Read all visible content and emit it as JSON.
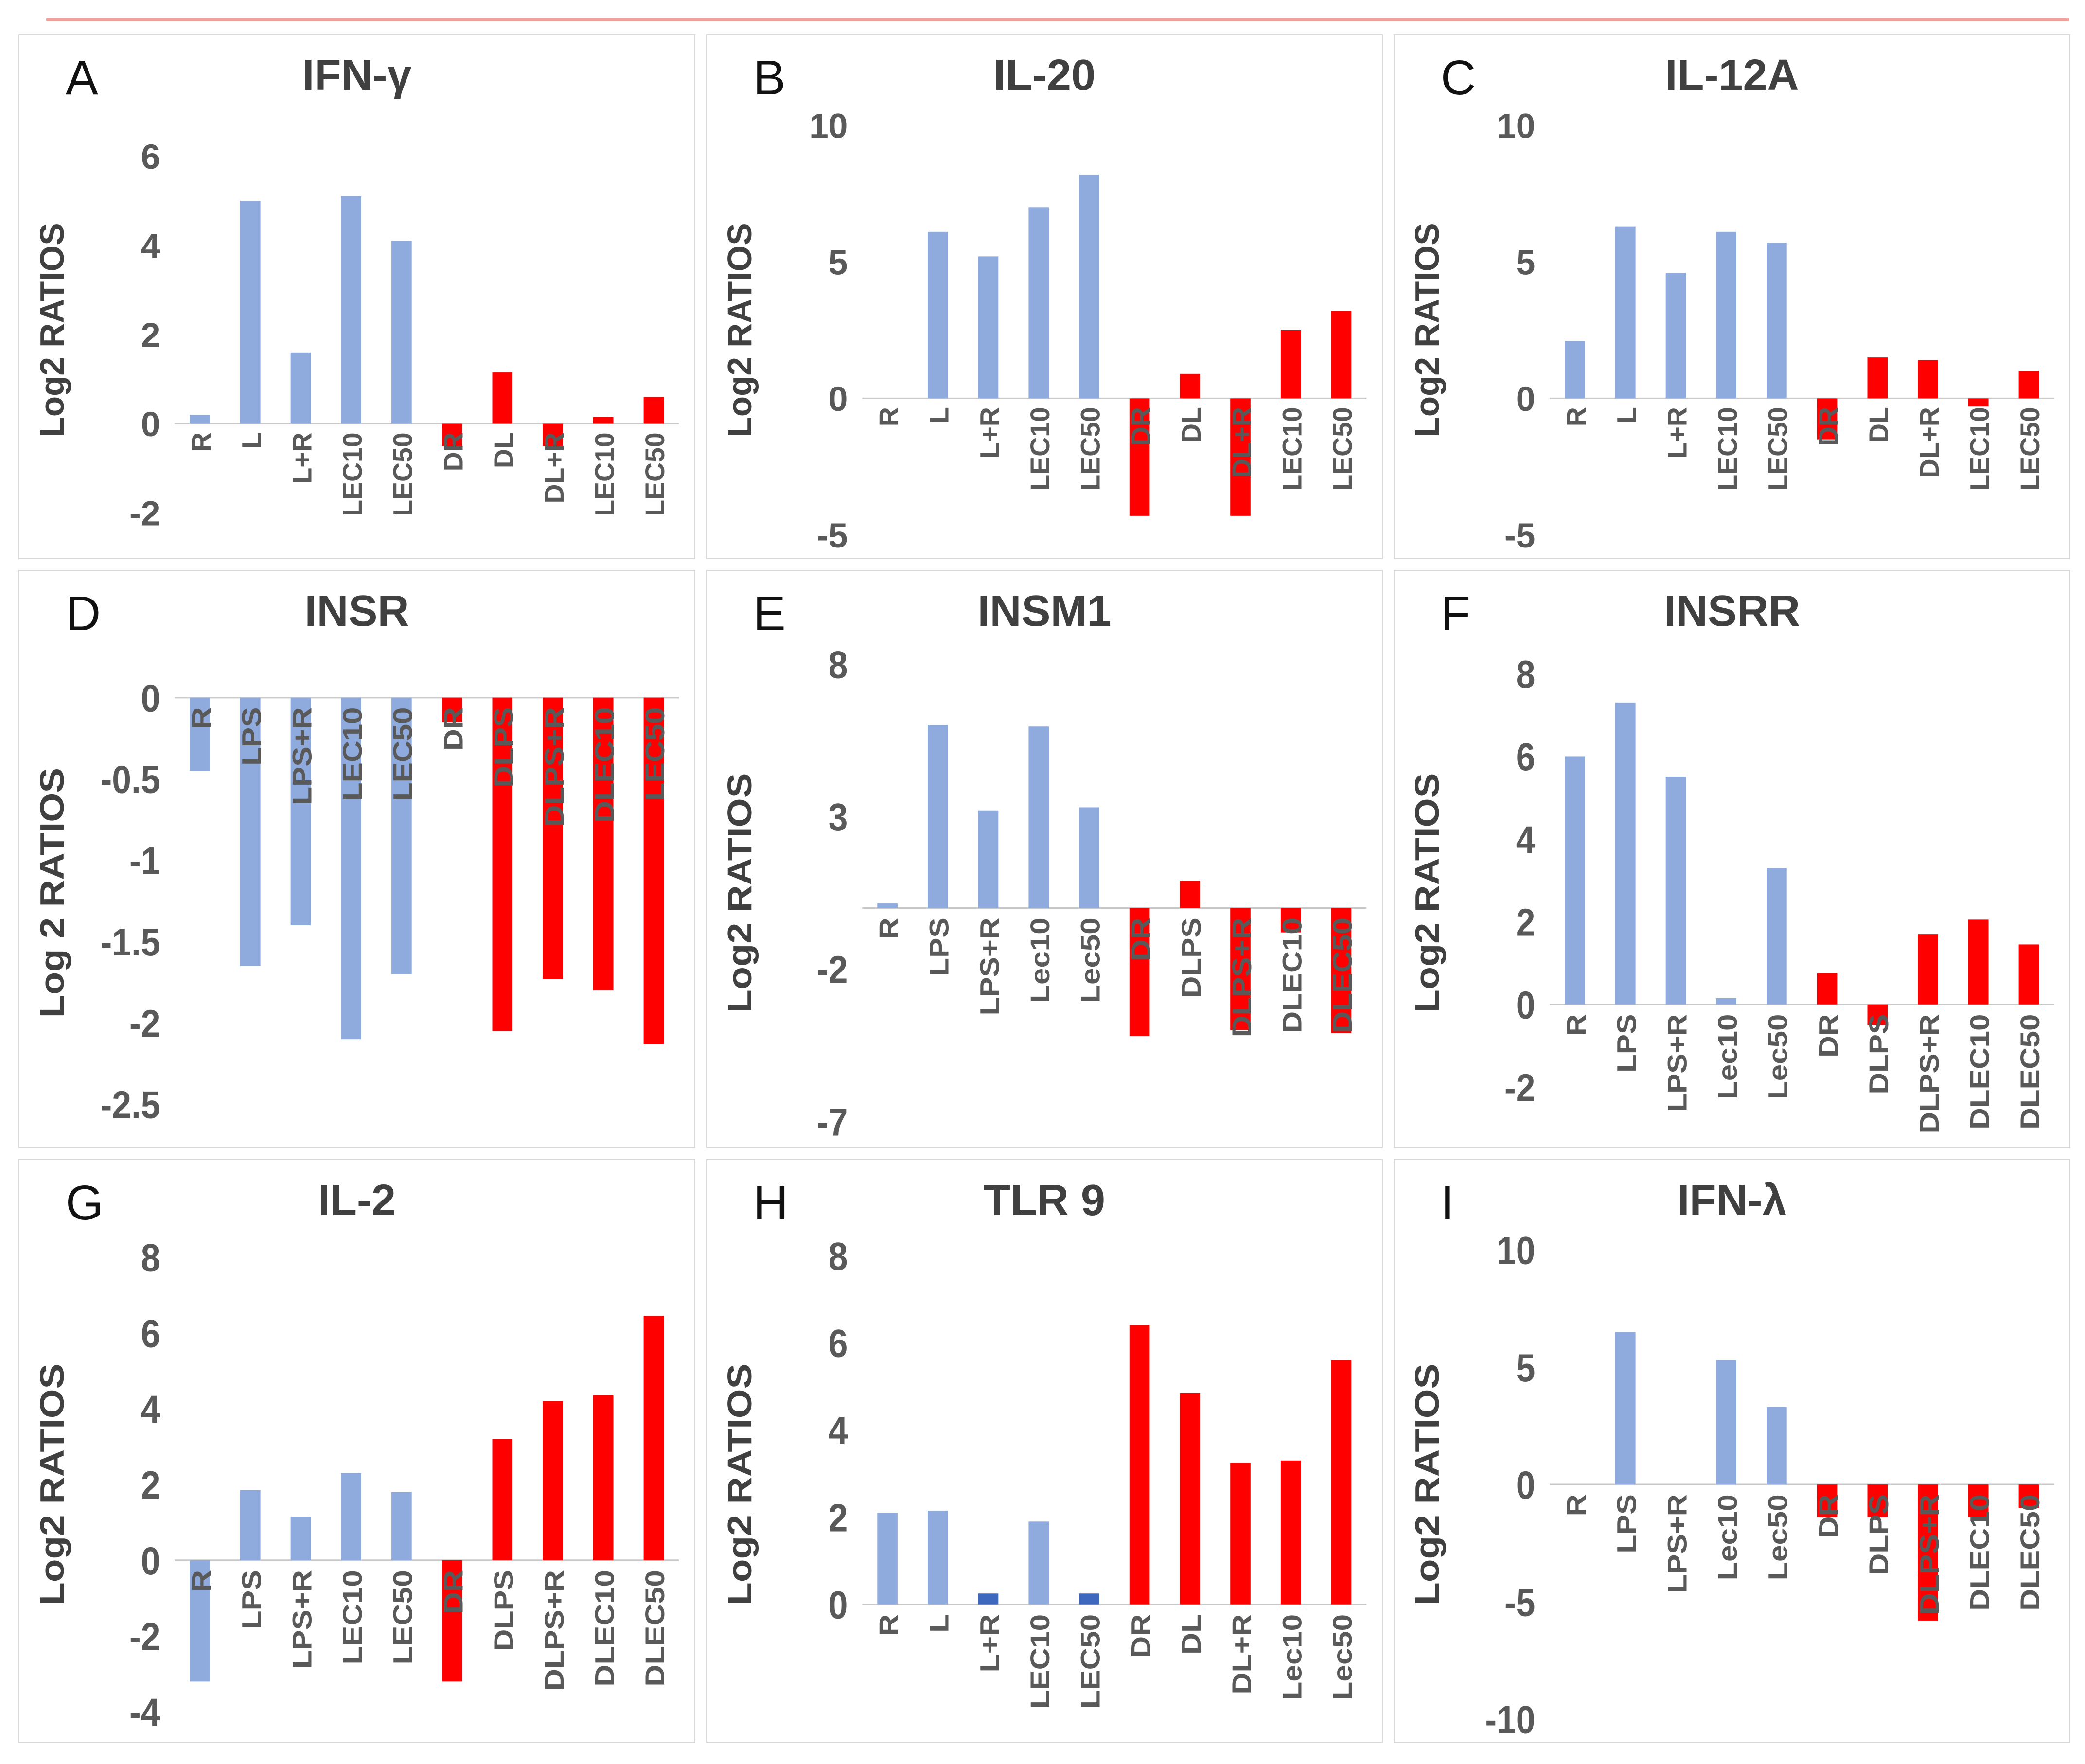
{
  "page": {
    "background": "#ffffff",
    "top_line_color": "#f2a29b"
  },
  "colors": {
    "lightblue": "#8FAADC",
    "darkblue": "#3E68BE",
    "red": "#FF0000",
    "axis": "#c9c9c9",
    "tick_text": "#595959",
    "title_text": "#404040",
    "border": "#d9d9d9"
  },
  "chart_data": [
    {
      "letter": "A",
      "type": "bar",
      "title": "IFN-γ",
      "ylabel": "Log2 RATIOS",
      "categories": [
        "R",
        "L",
        "L+R",
        "LEC10",
        "LEC50",
        "DR",
        "DL",
        "DL+R",
        "LEC10",
        "LEC50"
      ],
      "values": [
        0.2,
        5.0,
        1.6,
        5.1,
        4.1,
        -0.5,
        1.15,
        -0.5,
        0.15,
        0.6
      ],
      "bar_colors": [
        "lightblue",
        "lightblue",
        "lightblue",
        "lightblue",
        "lightblue",
        "red",
        "red",
        "red",
        "red",
        "red"
      ],
      "yticks": [
        6,
        4,
        2,
        0,
        -2
      ],
      "ylim": [
        -2.8,
        7.0
      ],
      "grid": "zero-line-only",
      "legend": "none"
    },
    {
      "letter": "B",
      "type": "bar",
      "title": "IL-20",
      "ylabel": "Log2 RATIOS",
      "categories": [
        "R",
        "L",
        "L+R",
        "LEC10",
        "LEC50",
        "DR",
        "DL",
        "DL+R",
        "LEC10",
        "LEC50"
      ],
      "values": [
        0,
        6.1,
        5.2,
        7.0,
        8.2,
        -4.3,
        0.9,
        -4.3,
        2.5,
        3.2
      ],
      "bar_colors": [
        "lightblue",
        "lightblue",
        "lightblue",
        "lightblue",
        "lightblue",
        "red",
        "red",
        "red",
        "red",
        "red"
      ],
      "yticks": [
        10,
        5,
        0,
        -5
      ],
      "ylim": [
        -5.5,
        10.5
      ],
      "grid": "zero-line-only",
      "legend": "none"
    },
    {
      "letter": "C",
      "type": "bar",
      "title": "IL-12A",
      "ylabel": "Log2 RATIOS",
      "categories": [
        "R",
        "L",
        "L+R",
        "LEC10",
        "LEC50",
        "DR",
        "DL",
        "DL+R",
        "LEC10",
        "LEC50"
      ],
      "values": [
        2.1,
        6.3,
        4.6,
        6.1,
        5.7,
        -1.5,
        1.5,
        1.4,
        -0.3,
        1.0
      ],
      "bar_colors": [
        "lightblue",
        "lightblue",
        "lightblue",
        "lightblue",
        "lightblue",
        "red",
        "red",
        "red",
        "red",
        "red"
      ],
      "yticks": [
        10,
        5,
        0,
        -5
      ],
      "ylim": [
        -5.5,
        10.5
      ],
      "grid": "zero-line-only",
      "legend": "none"
    },
    {
      "letter": "D",
      "type": "bar",
      "title": "INSR",
      "ylabel": "Log 2 RATIOS",
      "categories": [
        "R",
        "LPS",
        "LPS+R",
        "LEC10",
        "LEC50",
        "DR",
        "DLPS",
        "DLPS+R",
        "DLEC10",
        "LEC50"
      ],
      "values": [
        -0.45,
        -1.65,
        -1.4,
        -2.1,
        -1.7,
        -0.15,
        -2.05,
        -1.73,
        -1.8,
        -2.13
      ],
      "bar_colors": [
        "lightblue",
        "lightblue",
        "lightblue",
        "lightblue",
        "lightblue",
        "red",
        "red",
        "red",
        "red",
        "red"
      ],
      "yticks": [
        0,
        -0.5,
        -1,
        -1.5,
        -2,
        -2.5
      ],
      "ylim": [
        -2.7,
        0.3
      ],
      "grid": "zero-line-only",
      "legend": "none"
    },
    {
      "letter": "E",
      "type": "bar",
      "title": "INSM1",
      "ylabel": "Log2 RATIOS",
      "categories": [
        "R",
        "LPS",
        "LPS+R",
        "Lec10",
        "Lec50",
        "DR",
        "DLPS",
        "DLPS+R",
        "DLEC10",
        "DLEC50"
      ],
      "values": [
        0.15,
        6.0,
        3.2,
        5.95,
        3.3,
        -4.2,
        0.9,
        -4.0,
        -0.8,
        -4.1
      ],
      "bar_colors": [
        "lightblue",
        "lightblue",
        "lightblue",
        "lightblue",
        "lightblue",
        "red",
        "red",
        "red",
        "red",
        "red"
      ],
      "yticks": [
        8,
        3,
        -2,
        -7
      ],
      "ylim": [
        -7.5,
        8.5
      ],
      "grid": "zero-line-only",
      "legend": "none"
    },
    {
      "letter": "F",
      "type": "bar",
      "title": "INSRR",
      "ylabel": "Log2 RATIOS",
      "categories": [
        "R",
        "LPS",
        "LPS+R",
        "Lec10",
        "Lec50",
        "DR",
        "DLPS",
        "DLPS+R",
        "DLEC10",
        "DLEC50"
      ],
      "values": [
        6.0,
        7.3,
        5.5,
        0.15,
        3.3,
        0.75,
        -0.5,
        1.7,
        2.05,
        1.45
      ],
      "bar_colors": [
        "lightblue",
        "lightblue",
        "lightblue",
        "lightblue",
        "lightblue",
        "red",
        "red",
        "red",
        "red",
        "red"
      ],
      "yticks": [
        8,
        6,
        4,
        2,
        0,
        -2
      ],
      "ylim": [
        -3.2,
        8.6
      ],
      "grid": "zero-line-only",
      "legend": "none"
    },
    {
      "letter": "G",
      "type": "bar",
      "title": "IL-2",
      "ylabel": "Log2 RATIOS",
      "categories": [
        "R",
        "LPS",
        "LPS+R",
        "LEC10",
        "LEC50",
        "DR",
        "DLPS",
        "DLPS+R",
        "DLEC10",
        "DLEC50"
      ],
      "values": [
        -3.2,
        1.85,
        1.15,
        2.3,
        1.8,
        -3.2,
        3.2,
        4.2,
        4.35,
        6.45
      ],
      "bar_colors": [
        "lightblue",
        "lightblue",
        "lightblue",
        "lightblue",
        "lightblue",
        "red",
        "red",
        "red",
        "red",
        "red"
      ],
      "yticks": [
        8,
        6,
        4,
        2,
        0,
        -2,
        -4
      ],
      "ylim": [
        -4.5,
        8.5
      ],
      "grid": "zero-line-only",
      "legend": "none"
    },
    {
      "letter": "H",
      "type": "bar",
      "title": "TLR 9",
      "ylabel": "Log2 RATIOS",
      "categories": [
        "R",
        "L",
        "L+R",
        "LEC10",
        "LEC50",
        "DR",
        "DL",
        "DL+R",
        "Lec10",
        "Lec50"
      ],
      "values": [
        2.1,
        2.15,
        0.25,
        1.9,
        0.25,
        6.4,
        4.85,
        3.25,
        3.3,
        5.6
      ],
      "bar_colors": [
        "lightblue",
        "lightblue",
        "darkblue",
        "lightblue",
        "darkblue",
        "red",
        "red",
        "red",
        "red",
        "red"
      ],
      "yticks": [
        8,
        6,
        4,
        2,
        0
      ],
      "ylim": [
        -2.9,
        8.4
      ],
      "grid": "zero-line-only",
      "legend": "none"
    },
    {
      "letter": "I",
      "type": "bar",
      "title": "IFN-λ",
      "ylabel": "Log2 RATIOS",
      "categories": [
        "R",
        "LPS",
        "LPS+R",
        "Lec10",
        "Lec50",
        "DR",
        "DLPS",
        "DLPS+R",
        "DLEC10",
        "DLEC50"
      ],
      "values": [
        0,
        6.5,
        0,
        5.3,
        3.3,
        -1.4,
        -1.4,
        -5.8,
        -1.4,
        -1.0
      ],
      "bar_colors": [
        "lightblue",
        "lightblue",
        "lightblue",
        "lightblue",
        "lightblue",
        "red",
        "red",
        "red",
        "red",
        "red"
      ],
      "yticks": [
        10,
        5,
        0,
        -5,
        -10
      ],
      "ylim": [
        -10.5,
        10.5
      ],
      "grid": "zero-line-only",
      "legend": "none"
    }
  ]
}
